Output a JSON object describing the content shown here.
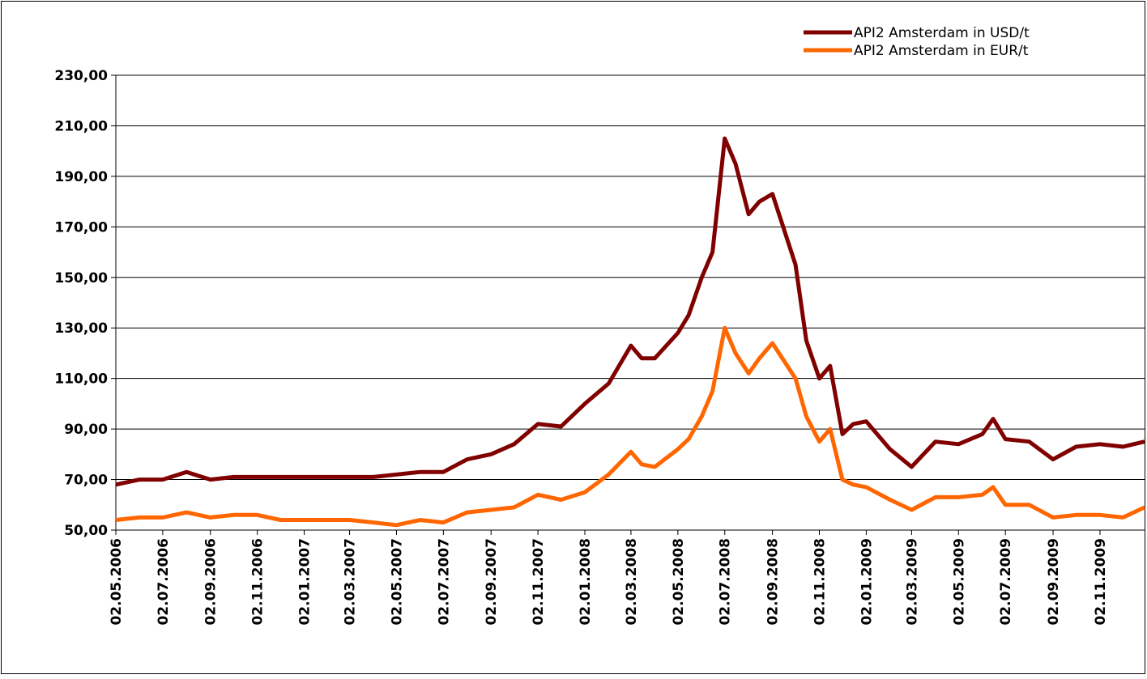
{
  "chart_data": {
    "type": "line",
    "x": [
      "02.05.2006",
      "02.06.2006",
      "02.07.2006",
      "02.08.2006",
      "02.09.2006",
      "02.10.2006",
      "02.11.2006",
      "02.12.2006",
      "02.01.2007",
      "02.02.2007",
      "02.03.2007",
      "02.04.2007",
      "02.05.2007",
      "02.06.2007",
      "02.07.2007",
      "02.08.2007",
      "02.09.2007",
      "02.10.2007",
      "02.11.2007",
      "02.12.2007",
      "02.01.2008",
      "02.02.2008",
      "02.03.2008",
      "16.03.2008",
      "02.04.2008",
      "02.05.2008",
      "16.05.2008",
      "02.06.2008",
      "16.06.2008",
      "02.07.2008",
      "16.07.2008",
      "02.08.2008",
      "16.08.2008",
      "02.09.2008",
      "02.10.2008",
      "16.10.2008",
      "02.11.2008",
      "16.11.2008",
      "02.12.2008",
      "16.12.2008",
      "02.01.2009",
      "02.02.2009",
      "02.03.2009",
      "02.04.2009",
      "02.05.2009",
      "02.06.2009",
      "16.06.2009",
      "02.07.2009",
      "02.08.2009",
      "02.09.2009",
      "02.10.2009",
      "02.11.2009",
      "02.12.2009",
      "30.12.2009"
    ],
    "series": [
      {
        "name": "API2 Amsterdam in USD/t",
        "color": "#800000",
        "values": [
          68,
          70,
          70,
          73,
          70,
          71,
          71,
          71,
          71,
          71,
          71,
          71,
          72,
          73,
          73,
          78,
          80,
          84,
          92,
          91,
          100,
          108,
          123,
          118,
          118,
          128,
          135,
          150,
          160,
          205,
          195,
          175,
          180,
          183,
          155,
          125,
          110,
          115,
          88,
          92,
          93,
          82,
          75,
          85,
          84,
          88,
          94,
          86,
          85,
          78,
          83,
          84,
          83,
          85
        ]
      },
      {
        "name": "API2 Amsterdam in EUR/t",
        "color": "#ff6600",
        "values": [
          54,
          55,
          55,
          57,
          55,
          56,
          56,
          54,
          54,
          54,
          54,
          53,
          52,
          54,
          53,
          57,
          58,
          59,
          64,
          62,
          65,
          72,
          81,
          76,
          75,
          82,
          86,
          95,
          105,
          130,
          120,
          112,
          118,
          124,
          110,
          95,
          85,
          90,
          70,
          68,
          67,
          62,
          58,
          63,
          63,
          64,
          67,
          60,
          60,
          55,
          56,
          56,
          55,
          59
        ]
      }
    ],
    "xlim": [
      "02.05.2006",
      "30.12.2009"
    ],
    "xticks": [
      "02.05.2006",
      "02.07.2006",
      "02.09.2006",
      "02.11.2006",
      "02.01.2007",
      "02.03.2007",
      "02.05.2007",
      "02.07.2007",
      "02.09.2007",
      "02.11.2007",
      "02.01.2008",
      "02.03.2008",
      "02.05.2008",
      "02.07.2008",
      "02.09.2008",
      "02.11.2008",
      "02.01.2009",
      "02.03.2009",
      "02.05.2009",
      "02.07.2009",
      "02.09.2009",
      "02.11.2009"
    ],
    "ylim": [
      50,
      230
    ],
    "yticks": [
      {
        "value": 50,
        "label": "50,00"
      },
      {
        "value": 70,
        "label": "70,00"
      },
      {
        "value": 90,
        "label": "90,00"
      },
      {
        "value": 110,
        "label": "110,00"
      },
      {
        "value": 130,
        "label": "130,00"
      },
      {
        "value": 150,
        "label": "150,00"
      },
      {
        "value": 170,
        "label": "170,00"
      },
      {
        "value": 190,
        "label": "190,00"
      },
      {
        "value": 210,
        "label": "210,00"
      },
      {
        "value": 230,
        "label": "230,00"
      }
    ],
    "grid": true,
    "legend": "top-right"
  }
}
